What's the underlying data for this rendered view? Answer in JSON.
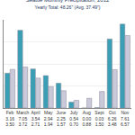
{
  "chart_data": {
    "type": "bar",
    "title": "Seattle Monthly Precipitation, 2012",
    "subtitle": "Yearly Total: 48.26\" (Avg. 37.49\")",
    "categories": [
      "Feb",
      "March",
      "April",
      "May",
      "June",
      "July",
      "Aug",
      "Sept",
      "Oct",
      "Nov"
    ],
    "series": [
      {
        "color": "#3a9fb5",
        "values": [
          3.16,
          7.05,
          3.54,
          2.94,
          2.25,
          0.54,
          0.0,
          0.03,
          6.26,
          7.61
        ],
        "value_labels": [
          "3.16",
          "7.05",
          "3.54",
          "2.94",
          "2.25",
          "0.54",
          "0.00",
          "0.03",
          "6.26",
          "7.61"
        ]
      },
      {
        "color": "#c9c9d9",
        "values": [
          3.5,
          3.72,
          2.71,
          1.94,
          1.57,
          0.7,
          0.88,
          1.5,
          3.48,
          6.57
        ],
        "value_labels": [
          "3.50",
          "3.72",
          "2.71",
          "1.94",
          "1.57",
          "0.70",
          "0.88",
          "1.50",
          "3.48",
          "6.57"
        ]
      }
    ],
    "ylim": [
      0,
      8
    ],
    "yticks": [
      0,
      2,
      4,
      6,
      8
    ],
    "grid": true,
    "tick_labels": "x"
  }
}
